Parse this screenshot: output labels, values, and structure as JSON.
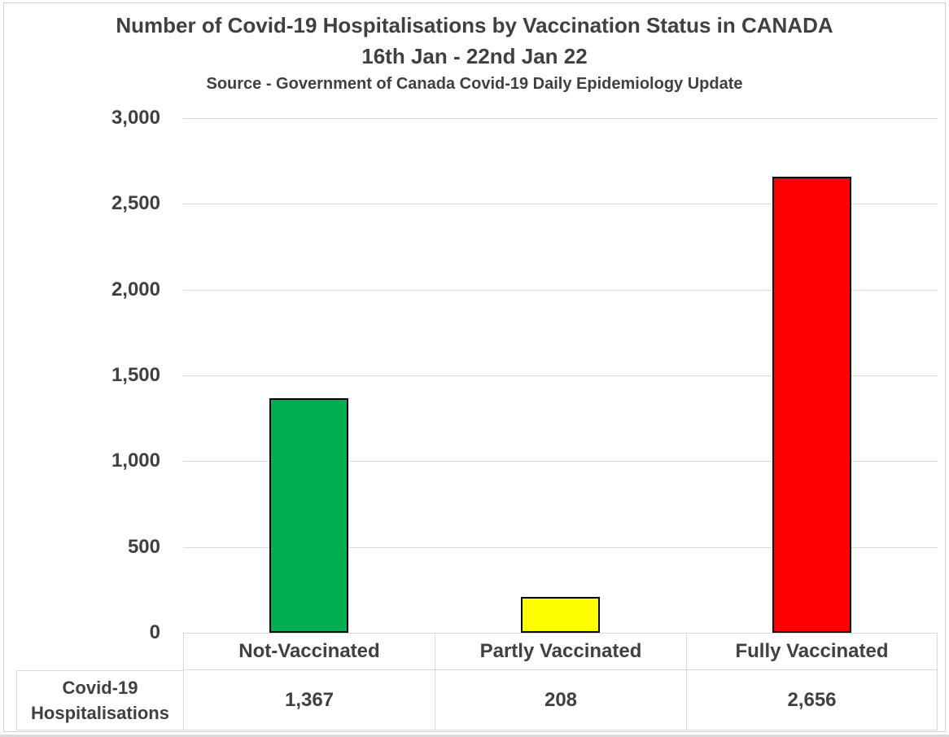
{
  "chart": {
    "title": "Number of Covid-19 Hospitalisations by Vaccination Status in CANADA",
    "subtitle": "16th Jan - 22nd Jan 22",
    "source": "Source - Government of Canada Covid-19 Daily Epidemiology Update"
  },
  "chart_data": {
    "type": "bar",
    "title": "Number of Covid-19 Hospitalisations by Vaccination Status in CANADA",
    "subtitle": "16th Jan - 22nd Jan 22",
    "source": "Source - Government of Canada Covid-19 Daily Epidemiology Update",
    "categories": [
      "Not-Vaccinated",
      "Partly Vaccinated",
      "Fully Vaccinated"
    ],
    "values": [
      1367,
      208,
      2656
    ],
    "series_name": "Covid-19 Hospitalisations",
    "xlabel": "",
    "ylabel": "",
    "ylim": [
      0,
      3000
    ],
    "ytick_interval": 500,
    "ytick_labels": [
      "0",
      "500",
      "1,000",
      "1,500",
      "2,000",
      "2,500",
      "3,000"
    ],
    "grid": true,
    "legend": "none",
    "data_table_shown": true,
    "bar_colors": [
      "#00B050",
      "#FFFF00",
      "#FF0000"
    ],
    "bar_border_color": "#000000"
  },
  "table": {
    "row_label": "Covid-19 Hospitalisations",
    "values": [
      "1,367",
      "208",
      "2,656"
    ]
  },
  "colors": {
    "text": "#404040",
    "gridline": "#D9D9D9",
    "table_border": "#D9D9D9",
    "frame_border": "#D2D2D2"
  }
}
